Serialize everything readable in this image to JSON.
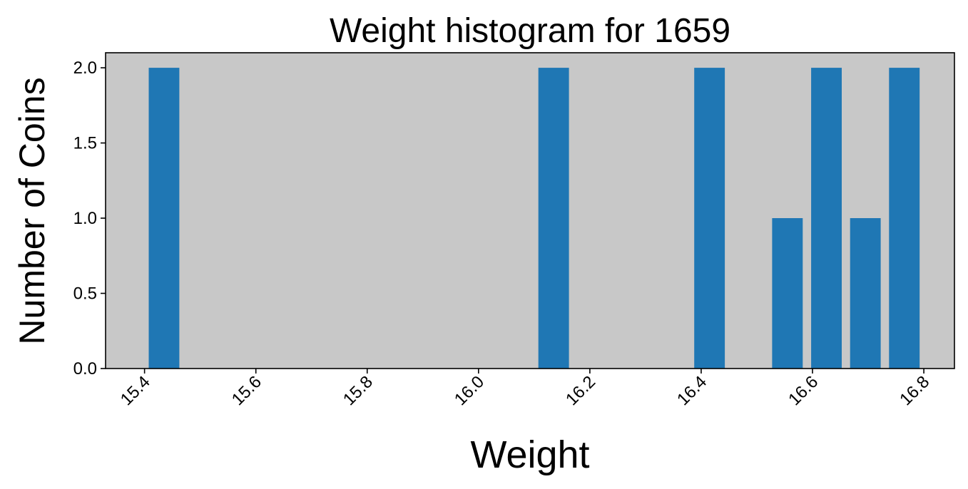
{
  "chart_data": {
    "type": "bar",
    "title": "Weight histogram for 1659",
    "xlabel": "Weight",
    "ylabel": "Number of Coins",
    "x": [
      15.435,
      16.135,
      16.415,
      16.555,
      16.625,
      16.695,
      16.765
    ],
    "values": [
      2,
      2,
      2,
      1,
      2,
      1,
      2
    ],
    "bar_width": 0.055,
    "xlim": [
      15.33,
      16.855
    ],
    "ylim": [
      0,
      2.1
    ],
    "xticks": [
      "15.4",
      "15.6",
      "15.8",
      "16.0",
      "16.2",
      "16.4",
      "16.6",
      "16.8"
    ],
    "xtick_values": [
      15.4,
      15.6,
      15.8,
      16.0,
      16.2,
      16.4,
      16.6,
      16.8
    ],
    "yticks": [
      "0.0",
      "0.5",
      "1.0",
      "1.5",
      "2.0"
    ],
    "ytick_values": [
      0,
      0.5,
      1.0,
      1.5,
      2.0
    ],
    "grid": false,
    "bar_color": "#1f77b4",
    "plot_background": "#c8c8c8"
  }
}
